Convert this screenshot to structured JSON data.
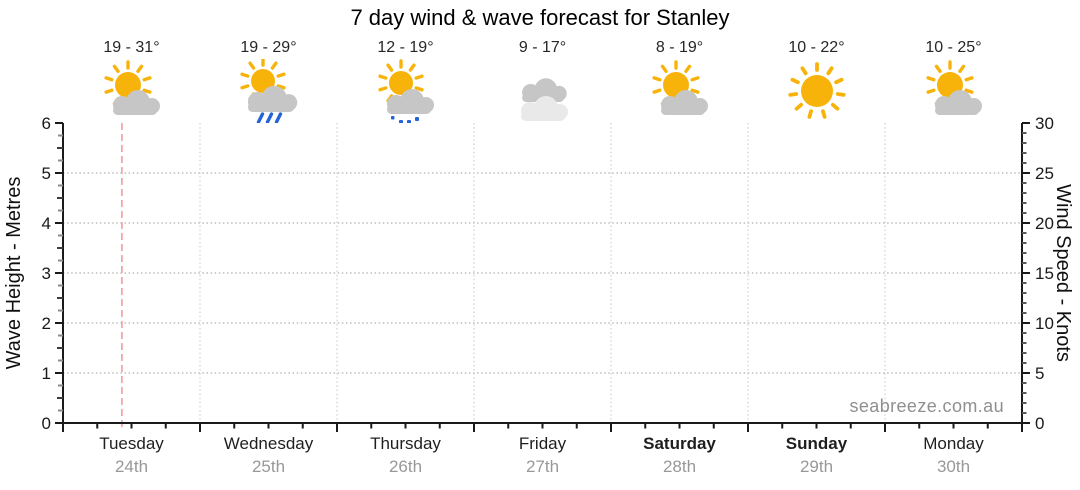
{
  "title": "7 day wind & wave forecast for Stanley",
  "watermark": "seabreeze.com.au",
  "colors": {
    "sun": "#F8B30B",
    "cloud": "#C6C6C6",
    "cloud_light": "#E9E9E9",
    "rain_blue": "#2563D8",
    "now_line": "#F3A8A8",
    "grid_h": "#9E9E9E",
    "grid_v": "#C6C6C6",
    "axis": "#1A1A1A",
    "tick_half": "#3D3D3D",
    "tick_quarter": "#8C8C8C",
    "tick_minor_right": "#5A5A5A",
    "day_name": "#1F1F1F",
    "day_date": "#989898",
    "temp_text": "#262626",
    "watermark_gray": "#8F8F8F"
  },
  "chart_data": {
    "type": "table",
    "title": "7 day wind & wave forecast for Stanley",
    "categories": [
      "Tuesday 24th",
      "Wednesday 25th",
      "Thursday 26th",
      "Friday 27th",
      "Saturday 28th",
      "Sunday 29th",
      "Monday 30th"
    ],
    "days": [
      {
        "name": "Tuesday",
        "date": "24th",
        "temp_range": "19 - 31°",
        "low": 19,
        "high": 31,
        "condition": "partly-cloudy",
        "bold": false
      },
      {
        "name": "Wednesday",
        "date": "25th",
        "temp_range": "19 - 29°",
        "low": 19,
        "high": 29,
        "condition": "rain-showers",
        "bold": false
      },
      {
        "name": "Thursday",
        "date": "26th",
        "temp_range": "12 - 19°",
        "low": 12,
        "high": 19,
        "condition": "light-showers",
        "bold": false
      },
      {
        "name": "Friday",
        "date": "27th",
        "temp_range": "9 - 17°",
        "low": 9,
        "high": 17,
        "condition": "cloudy",
        "bold": false
      },
      {
        "name": "Saturday",
        "date": "28th",
        "temp_range": "8 - 19°",
        "low": 8,
        "high": 19,
        "condition": "partly-cloudy",
        "bold": true
      },
      {
        "name": "Sunday",
        "date": "29th",
        "temp_range": "10 - 22°",
        "low": 10,
        "high": 22,
        "condition": "sunny",
        "bold": true
      },
      {
        "name": "Monday",
        "date": "30th",
        "temp_range": "10 - 25°",
        "low": 10,
        "high": 25,
        "condition": "partly-cloudy",
        "bold": false
      }
    ],
    "left_axis": {
      "label": "Wave Height - Metres",
      "min": 0,
      "max": 6,
      "major_step": 1,
      "minor_step": 0.25,
      "ticks": [
        0,
        1,
        2,
        3,
        4,
        5,
        6
      ]
    },
    "right_axis": {
      "label": "Wind Speed - Knots",
      "min": 0,
      "max": 30,
      "major_step": 5,
      "minor_step": 1,
      "ticks": [
        0,
        5,
        10,
        15,
        20,
        25,
        30
      ]
    },
    "series": [],
    "grid": true,
    "now_marker_day_fraction": 0.43
  }
}
